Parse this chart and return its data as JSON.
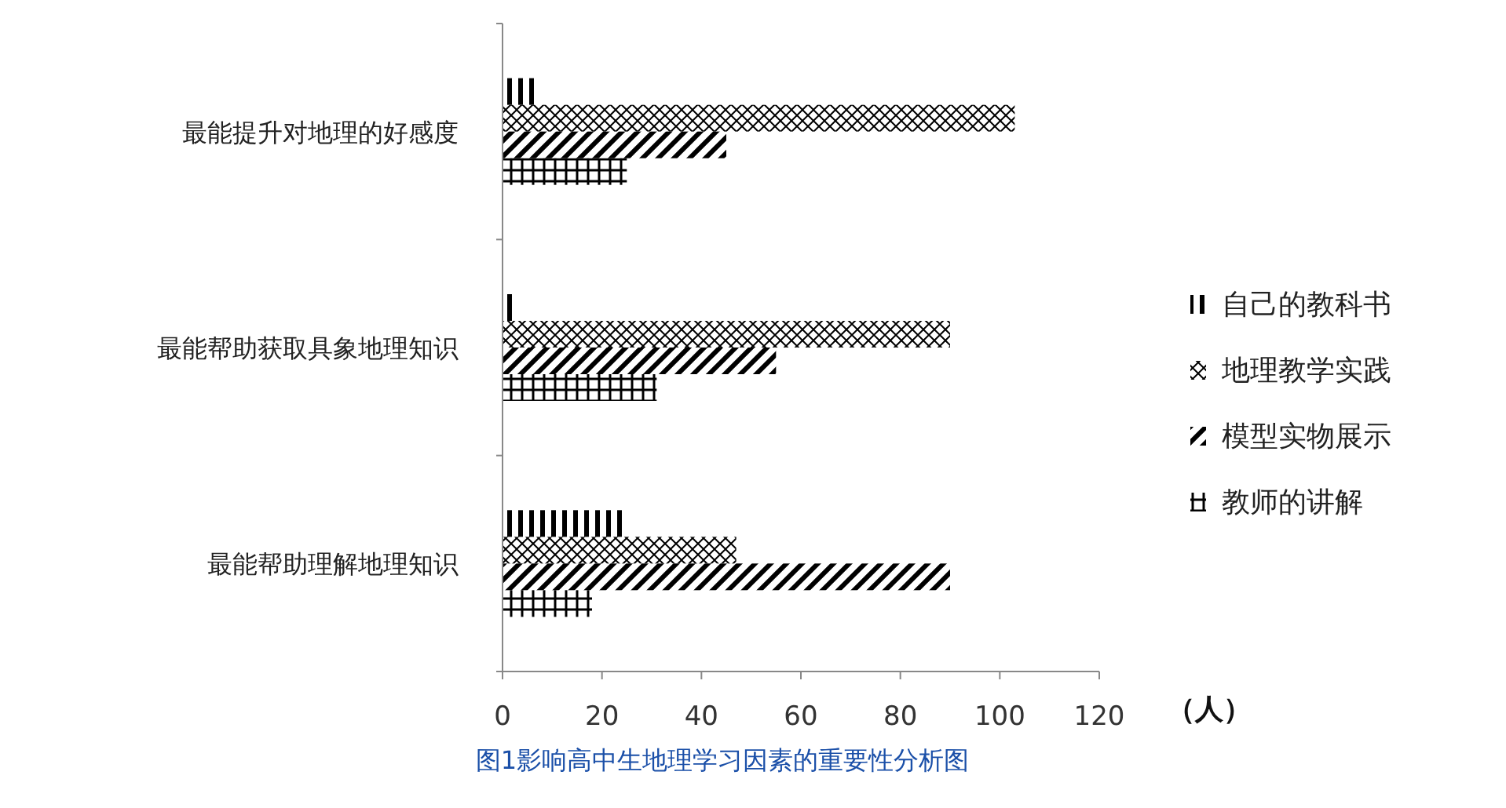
{
  "chart_data": {
    "type": "bar",
    "orientation": "horizontal",
    "title": "图1影响高中生地理学习因素的重要性分析图",
    "xlabel": "（人）",
    "categories": [
      "最能提升对地理的好感度",
      "最能帮助获取具象地理知识",
      "最能帮助理解地理知识"
    ],
    "series": [
      {
        "name": "自己的教科书",
        "color": "#000000",
        "values": [
          7,
          2,
          25
        ]
      },
      {
        "name": "地理教学实践",
        "color": "#000000",
        "values": [
          103,
          90,
          47
        ]
      },
      {
        "name": "模型实物展示",
        "color": "#000000",
        "values": [
          45,
          55,
          90
        ]
      },
      {
        "name": "教师的讲解",
        "color": "#000000",
        "values": [
          25,
          31,
          18
        ]
      }
    ],
    "xlim": [
      0,
      120
    ],
    "xticks": [
      0,
      20,
      40,
      60,
      80,
      100,
      120
    ],
    "grid": false,
    "legend": "right"
  }
}
